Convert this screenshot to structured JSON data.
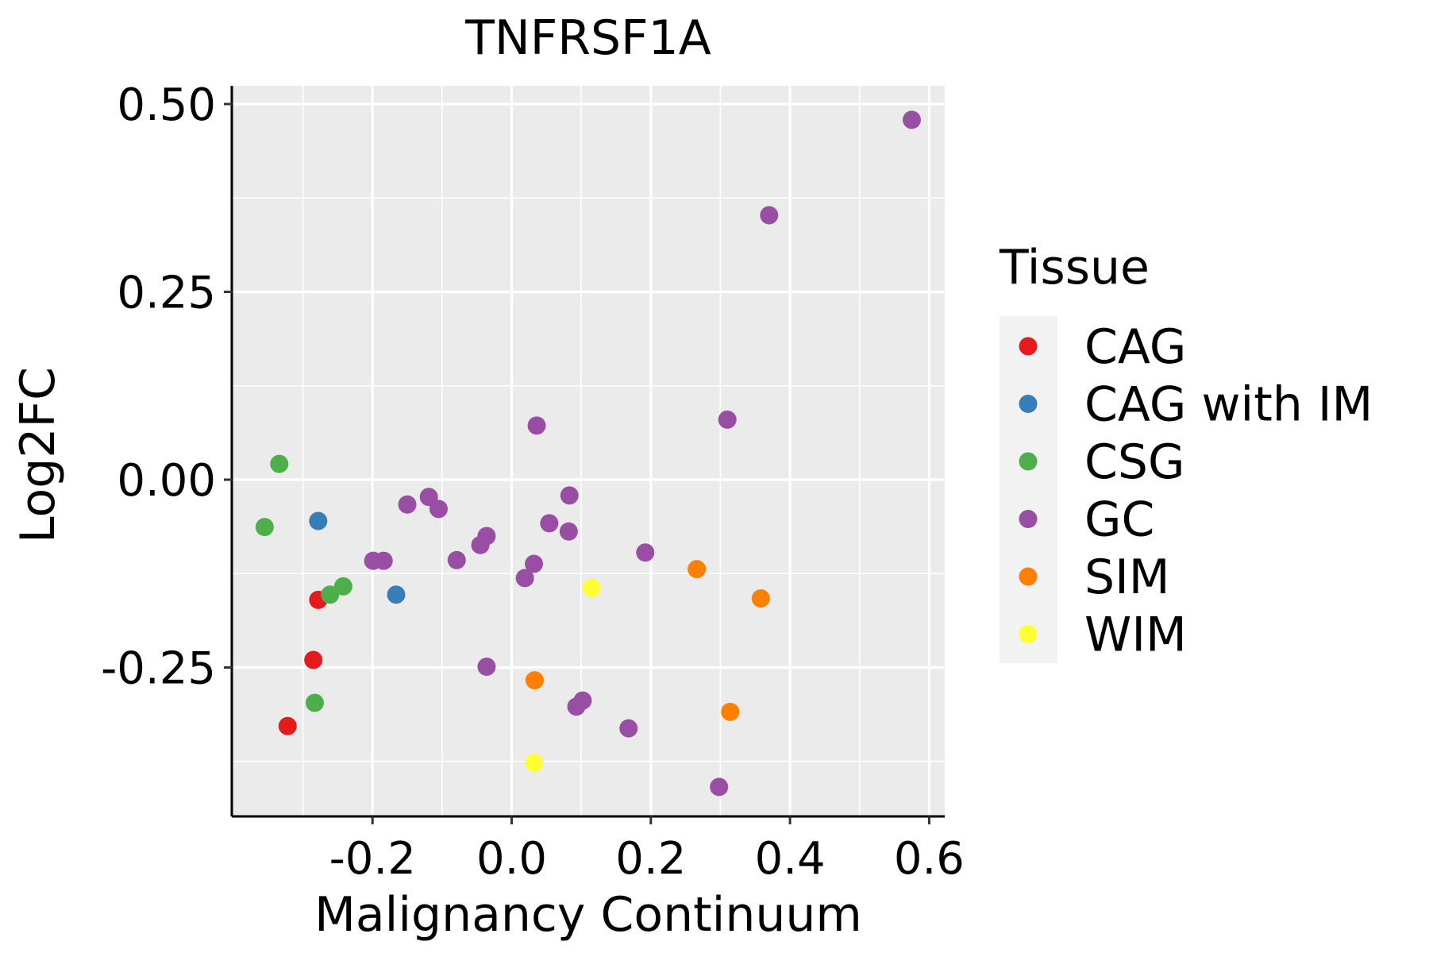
{
  "chart_data": {
    "type": "scatter",
    "title": "TNFRSF1A",
    "xlabel": "Malignancy Continuum",
    "ylabel": "Log2FC",
    "xlim": [
      -0.4,
      0.625
    ],
    "ylim": [
      -0.45,
      0.525
    ],
    "xticks": [
      -0.2,
      0.0,
      0.2,
      0.4,
      0.6
    ],
    "xtick_labels": [
      "-0.2",
      "0.0",
      "0.2",
      "0.4",
      "0.6"
    ],
    "yticks": [
      -0.25,
      0.0,
      0.25,
      0.5
    ],
    "ytick_labels": [
      "-0.25",
      "0.00",
      "0.25",
      "0.50"
    ],
    "grid": true,
    "legend": {
      "title": "Tissue",
      "position": "right",
      "entries": [
        {
          "name": "CAG",
          "color": "#E41A1C"
        },
        {
          "name": "CAG with IM",
          "color": "#377EB8"
        },
        {
          "name": "CSG",
          "color": "#4DAF4A"
        },
        {
          "name": "GC",
          "color": "#984EA3"
        },
        {
          "name": "SIM",
          "color": "#FF7F00"
        },
        {
          "name": "WIM",
          "color": "#FFFF33"
        }
      ]
    },
    "series": [
      {
        "name": "CAG",
        "color": "#E41A1C",
        "points": [
          {
            "x": -0.278,
            "y": -0.16
          },
          {
            "x": -0.285,
            "y": -0.24
          },
          {
            "x": -0.322,
            "y": -0.328
          }
        ]
      },
      {
        "name": "CAG with IM",
        "color": "#377EB8",
        "points": [
          {
            "x": -0.278,
            "y": -0.055
          },
          {
            "x": -0.166,
            "y": -0.153
          }
        ]
      },
      {
        "name": "CSG",
        "color": "#4DAF4A",
        "points": [
          {
            "x": -0.334,
            "y": 0.021
          },
          {
            "x": -0.355,
            "y": -0.063
          },
          {
            "x": -0.242,
            "y": -0.142
          },
          {
            "x": -0.261,
            "y": -0.153
          },
          {
            "x": -0.283,
            "y": -0.297
          }
        ]
      },
      {
        "name": "GC",
        "color": "#984EA3",
        "points": [
          {
            "x": 0.575,
            "y": 0.479
          },
          {
            "x": 0.37,
            "y": 0.352
          },
          {
            "x": 0.31,
            "y": 0.08
          },
          {
            "x": 0.036,
            "y": 0.072
          },
          {
            "x": 0.083,
            "y": -0.021
          },
          {
            "x": -0.119,
            "y": -0.023
          },
          {
            "x": -0.15,
            "y": -0.033
          },
          {
            "x": -0.105,
            "y": -0.039
          },
          {
            "x": 0.054,
            "y": -0.058
          },
          {
            "x": 0.082,
            "y": -0.069
          },
          {
            "x": -0.036,
            "y": -0.075
          },
          {
            "x": -0.045,
            "y": -0.087
          },
          {
            "x": 0.192,
            "y": -0.097
          },
          {
            "x": -0.199,
            "y": -0.108
          },
          {
            "x": -0.184,
            "y": -0.108
          },
          {
            "x": -0.079,
            "y": -0.107
          },
          {
            "x": 0.032,
            "y": -0.112
          },
          {
            "x": 0.019,
            "y": -0.131
          },
          {
            "x": -0.036,
            "y": -0.249
          },
          {
            "x": 0.102,
            "y": -0.294
          },
          {
            "x": 0.093,
            "y": -0.302
          },
          {
            "x": 0.168,
            "y": -0.331
          },
          {
            "x": 0.298,
            "y": -0.409
          }
        ]
      },
      {
        "name": "SIM",
        "color": "#FF7F00",
        "points": [
          {
            "x": 0.266,
            "y": -0.119
          },
          {
            "x": 0.358,
            "y": -0.158
          },
          {
            "x": 0.033,
            "y": -0.267
          },
          {
            "x": 0.314,
            "y": -0.309
          }
        ]
      },
      {
        "name": "WIM",
        "color": "#FFFF33",
        "points": [
          {
            "x": 0.115,
            "y": -0.144
          },
          {
            "x": 0.032,
            "y": -0.377
          }
        ]
      }
    ]
  }
}
